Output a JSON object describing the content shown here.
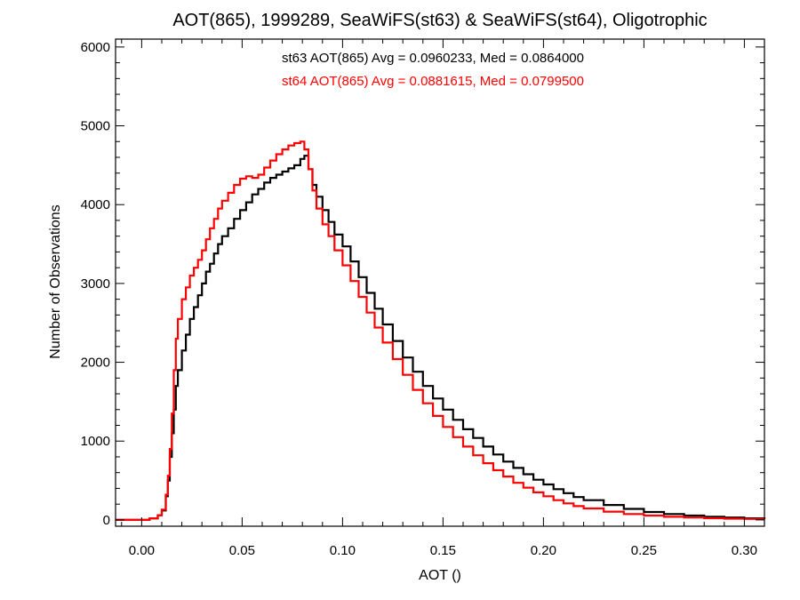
{
  "chart_data": {
    "type": "line",
    "title": "AOT(865), 1999289, SeaWiFS(st63) & SeaWiFS(st64), Oligotrophic",
    "xlabel": "AOT ()",
    "ylabel": "Number of Observations",
    "xlim": [
      -0.013,
      0.31
    ],
    "ylim": [
      -80,
      6100
    ],
    "xticks": [
      0.0,
      0.05,
      0.1,
      0.15,
      0.2,
      0.25,
      0.3
    ],
    "xtick_labels": [
      "0.00",
      "0.05",
      "0.10",
      "0.15",
      "0.20",
      "0.25",
      "0.30"
    ],
    "yticks": [
      0,
      1000,
      2000,
      3000,
      4000,
      5000,
      6000
    ],
    "ytick_labels": [
      "0",
      "1000",
      "2000",
      "3000",
      "4000",
      "5000",
      "6000"
    ],
    "grid": false,
    "step": true,
    "annotations": [
      {
        "text": "st63 AOT(865) Avg = 0.0960233, Med = 0.0864000",
        "color": "#000000"
      },
      {
        "text": "st64 AOT(865) Avg = 0.0881615, Med = 0.0799500",
        "color": "#ff0000"
      }
    ],
    "series": [
      {
        "color": "#000000",
        "x": [
          -0.013,
          0.0,
          0.004,
          0.008,
          0.01,
          0.012,
          0.013,
          0.014,
          0.015,
          0.016,
          0.017,
          0.018,
          0.02,
          0.022,
          0.024,
          0.026,
          0.028,
          0.03,
          0.032,
          0.034,
          0.036,
          0.038,
          0.04,
          0.043,
          0.046,
          0.049,
          0.052,
          0.055,
          0.058,
          0.061,
          0.064,
          0.067,
          0.07,
          0.073,
          0.076,
          0.079,
          0.081,
          0.083,
          0.085,
          0.087,
          0.09,
          0.093,
          0.096,
          0.1,
          0.104,
          0.108,
          0.112,
          0.116,
          0.12,
          0.125,
          0.13,
          0.135,
          0.14,
          0.145,
          0.15,
          0.155,
          0.16,
          0.165,
          0.17,
          0.175,
          0.18,
          0.185,
          0.19,
          0.195,
          0.2,
          0.205,
          0.21,
          0.215,
          0.22,
          0.23,
          0.24,
          0.25,
          0.26,
          0.27,
          0.28,
          0.29,
          0.3,
          0.31
        ],
        "y": [
          0,
          0,
          20,
          60,
          120,
          300,
          500,
          800,
          1100,
          1400,
          1700,
          1900,
          2150,
          2350,
          2550,
          2700,
          2850,
          3000,
          3150,
          3250,
          3380,
          3500,
          3600,
          3700,
          3820,
          3930,
          4030,
          4130,
          4200,
          4280,
          4340,
          4380,
          4420,
          4460,
          4500,
          4580,
          4620,
          4450,
          4250,
          4100,
          3930,
          3780,
          3620,
          3470,
          3280,
          3080,
          2880,
          2680,
          2480,
          2270,
          2060,
          1880,
          1700,
          1540,
          1400,
          1270,
          1150,
          1040,
          930,
          830,
          740,
          660,
          580,
          510,
          450,
          390,
          340,
          290,
          250,
          190,
          140,
          100,
          75,
          55,
          40,
          30,
          20,
          15
        ]
      },
      {
        "color": "#ff0000",
        "x": [
          -0.013,
          0.0,
          0.004,
          0.008,
          0.01,
          0.012,
          0.013,
          0.014,
          0.015,
          0.016,
          0.017,
          0.018,
          0.02,
          0.022,
          0.024,
          0.026,
          0.028,
          0.03,
          0.032,
          0.034,
          0.036,
          0.038,
          0.04,
          0.043,
          0.046,
          0.049,
          0.052,
          0.055,
          0.058,
          0.061,
          0.064,
          0.067,
          0.07,
          0.073,
          0.076,
          0.079,
          0.081,
          0.083,
          0.085,
          0.087,
          0.09,
          0.093,
          0.096,
          0.1,
          0.104,
          0.108,
          0.112,
          0.116,
          0.12,
          0.125,
          0.13,
          0.135,
          0.14,
          0.145,
          0.15,
          0.155,
          0.16,
          0.165,
          0.17,
          0.175,
          0.18,
          0.185,
          0.19,
          0.195,
          0.2,
          0.205,
          0.21,
          0.215,
          0.22,
          0.23,
          0.24,
          0.25,
          0.26,
          0.27,
          0.28,
          0.29,
          0.3,
          0.31
        ],
        "y": [
          0,
          0,
          20,
          60,
          130,
          320,
          560,
          900,
          1350,
          1900,
          2300,
          2550,
          2800,
          2950,
          3100,
          3200,
          3300,
          3420,
          3560,
          3700,
          3820,
          3950,
          4050,
          4150,
          4250,
          4330,
          4360,
          4340,
          4380,
          4470,
          4560,
          4640,
          4700,
          4750,
          4780,
          4800,
          4700,
          4450,
          4180,
          3950,
          3750,
          3600,
          3420,
          3230,
          3030,
          2830,
          2630,
          2440,
          2250,
          2040,
          1840,
          1650,
          1480,
          1320,
          1180,
          1050,
          930,
          820,
          720,
          630,
          550,
          470,
          410,
          350,
          300,
          250,
          210,
          175,
          145,
          105,
          75,
          55,
          40,
          30,
          22,
          16,
          12,
          10
        ]
      }
    ]
  }
}
